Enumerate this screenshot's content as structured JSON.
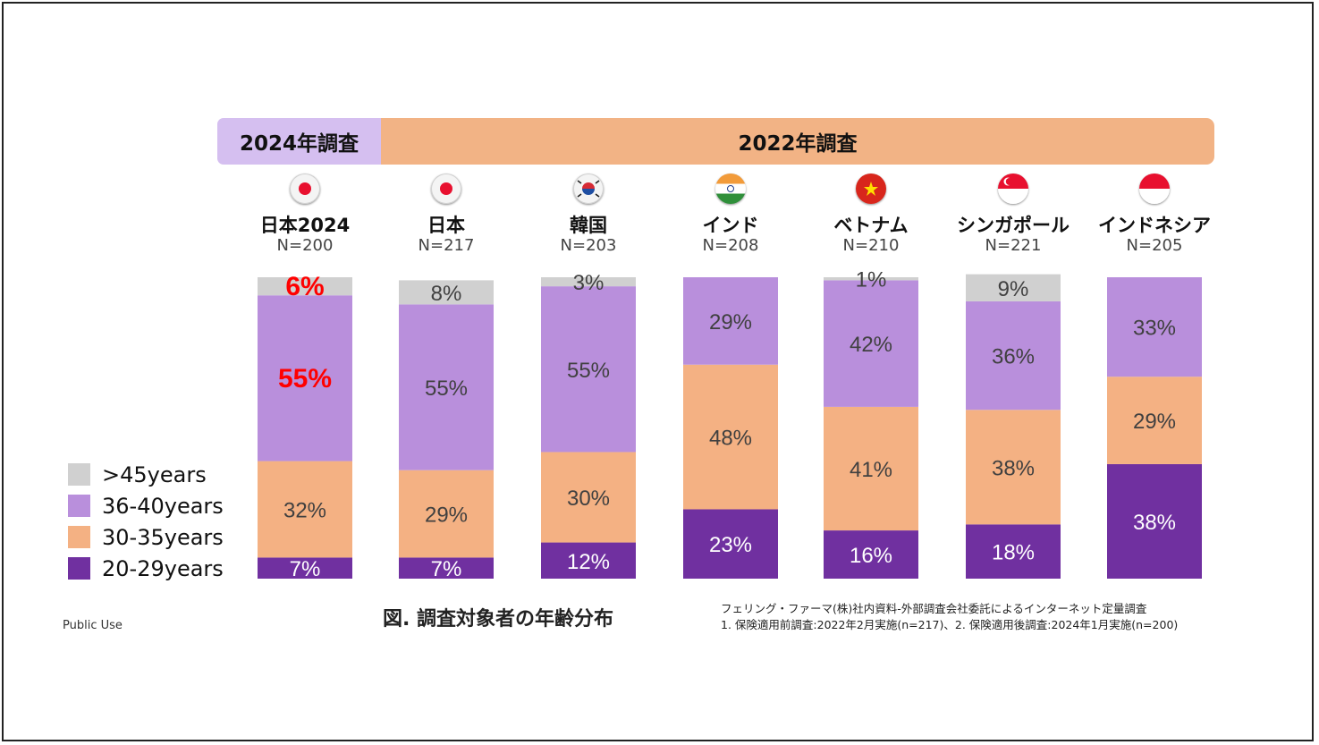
{
  "headers": {
    "h2024": "2024年調査",
    "h2022": "2022年調査"
  },
  "columns": [
    {
      "name": "日本2024",
      "n": "N=200",
      "flag": "japan-flag"
    },
    {
      "name": "日本",
      "n": "N=217",
      "flag": "japan-flag"
    },
    {
      "name": "韓国",
      "n": "N=203",
      "flag": "korea-flag"
    },
    {
      "name": "インド",
      "n": "N=208",
      "flag": "india-flag"
    },
    {
      "name": "ベトナム",
      "n": "N=210",
      "flag": "vietnam-flag"
    },
    {
      "name": "シンガポール",
      "n": "N=221",
      "flag": "singapore-flag"
    },
    {
      "name": "インドネシア",
      "n": "N=205",
      "flag": "indonesia-flag"
    }
  ],
  "chart_data": {
    "type": "bar",
    "stacked": true,
    "categories": [
      "日本2024",
      "日本",
      "韓国",
      "インド",
      "ベトナム",
      "シンガポール",
      "インドネシア"
    ],
    "series": [
      {
        "name": "20-29years",
        "color": "#7030a0",
        "label_color": "#ffffff",
        "values": [
          7,
          7,
          12,
          23,
          16,
          18,
          38
        ]
      },
      {
        "name": "30-35years",
        "color": "#f4b183",
        "label_color": "#404040",
        "values": [
          32,
          29,
          30,
          48,
          41,
          38,
          29
        ]
      },
      {
        "name": "36-40years",
        "color": "#b98fdc",
        "label_color": "#404040",
        "values": [
          55,
          55,
          55,
          29,
          42,
          36,
          33
        ]
      },
      {
        "name": ">45years",
        "color": "#d0d0d0",
        "label_color": "#404040",
        "values": [
          6,
          8,
          3,
          0,
          1,
          9,
          0
        ]
      }
    ],
    "highlight": {
      "category_index": 0,
      "series": [
        ">45years",
        "36-40years"
      ],
      "color": "#ff0000"
    },
    "legend": {
      "position": "left",
      "order": [
        ">45years",
        "36-40years",
        "30-35years",
        "20-29years"
      ]
    }
  },
  "caption": "図. 調査対象者の年齢分布",
  "public_use": "Public Use",
  "source_lines": [
    "フェリング・ファーマ(株)社内資料-外部調査会社委託によるインターネット定量調査",
    "1. 保険適用前調査:2022年2月実施(n=217)、2. 保険適用後調査:2024年1月実施(n=200)"
  ]
}
